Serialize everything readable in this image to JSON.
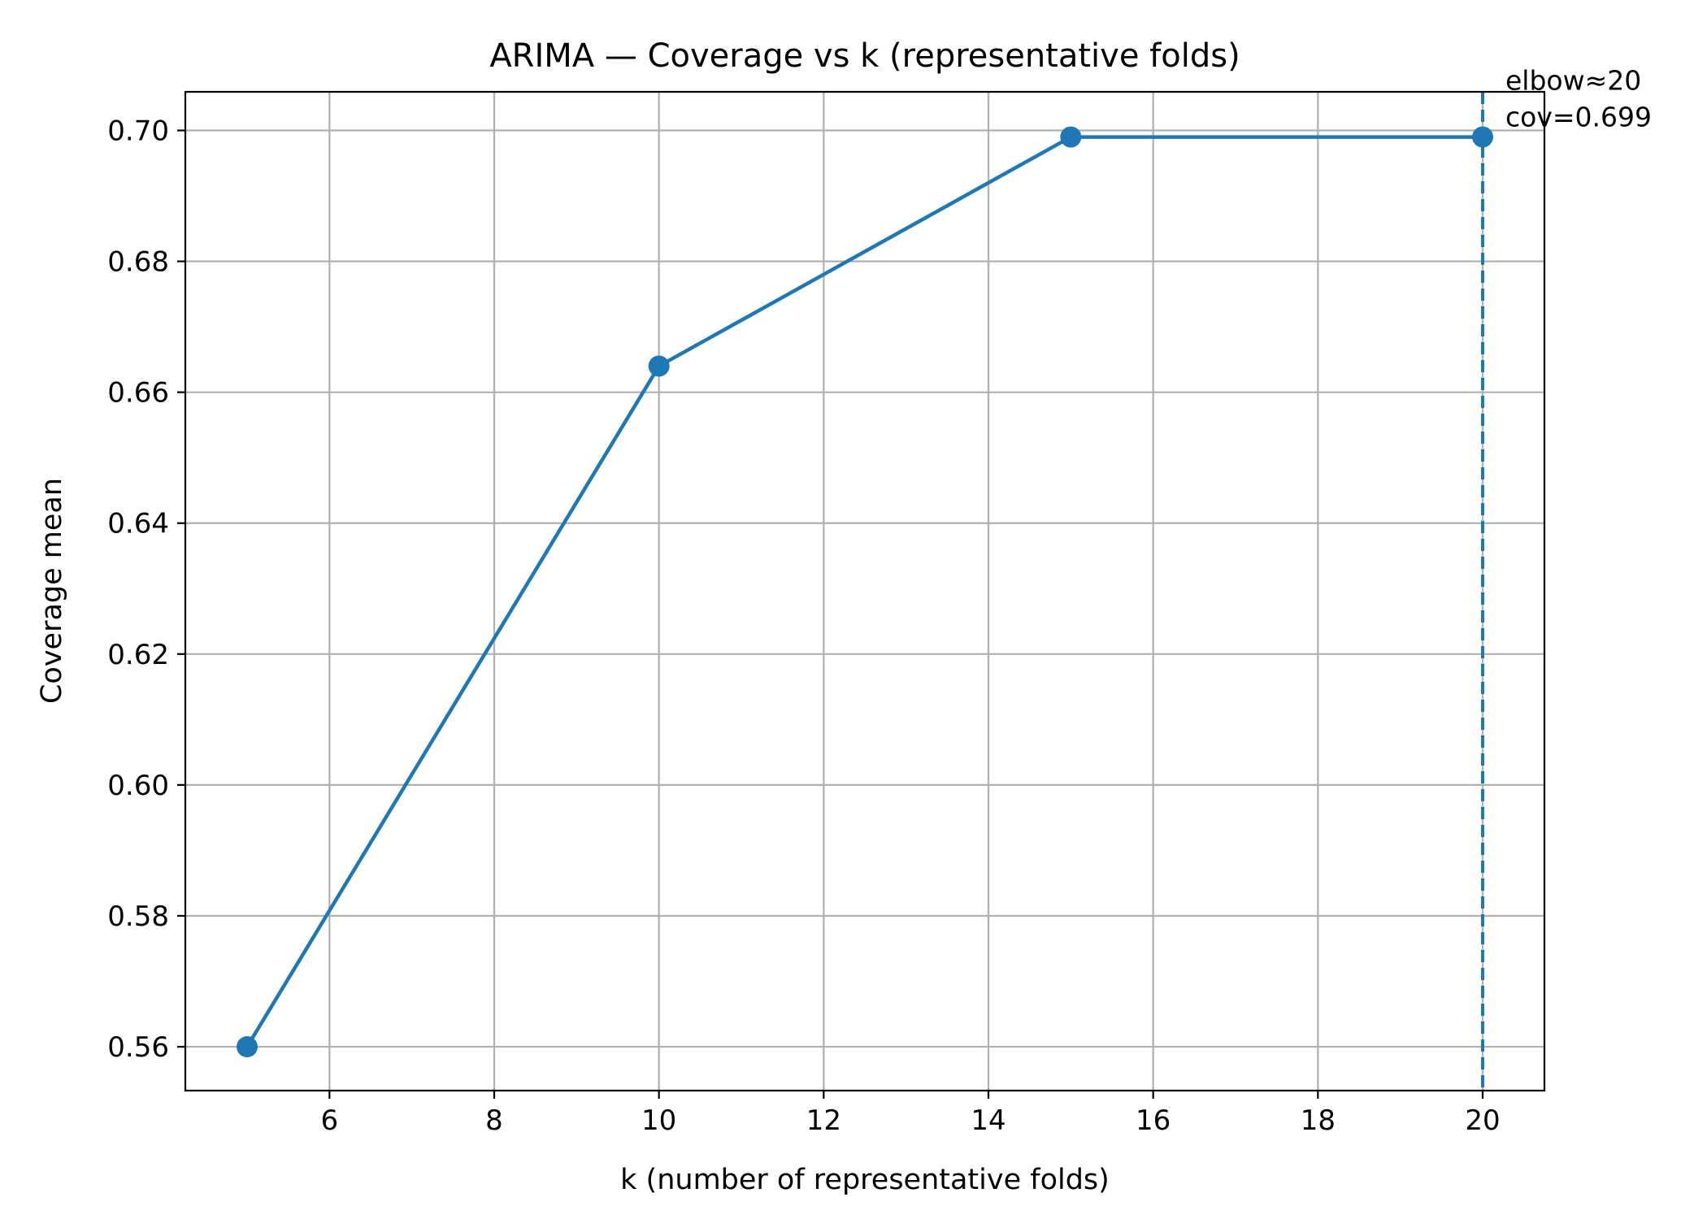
{
  "chart_data": {
    "type": "line",
    "title": "ARIMA — Coverage vs k (representative folds)",
    "xlabel": "k (number of representative folds)",
    "ylabel": "Coverage mean",
    "x": [
      5,
      10,
      15,
      20
    ],
    "series": [
      {
        "values": [
          0.56,
          0.664,
          0.699,
          0.699
        ],
        "color": "#1f77b4",
        "marker": "circle"
      }
    ],
    "xlim": [
      4.25,
      20.75
    ],
    "ylim": [
      0.5533,
      0.7059
    ],
    "xticks": [
      6,
      8,
      10,
      12,
      14,
      16,
      18,
      20
    ],
    "yticks": [
      0.56,
      0.58,
      0.6,
      0.62,
      0.64,
      0.66,
      0.68,
      0.7
    ],
    "xtick_labels": [
      "6",
      "8",
      "10",
      "12",
      "14",
      "16",
      "18",
      "20"
    ],
    "ytick_labels": [
      "0.56",
      "0.58",
      "0.60",
      "0.62",
      "0.64",
      "0.66",
      "0.68",
      "0.70"
    ],
    "grid": true,
    "vline": {
      "x": 20,
      "style": "dashed",
      "color": "#1f77b4"
    },
    "annotation": {
      "x": 20,
      "y": 0.699,
      "lines": [
        "elbow≈20",
        "cov=0.699"
      ]
    }
  }
}
